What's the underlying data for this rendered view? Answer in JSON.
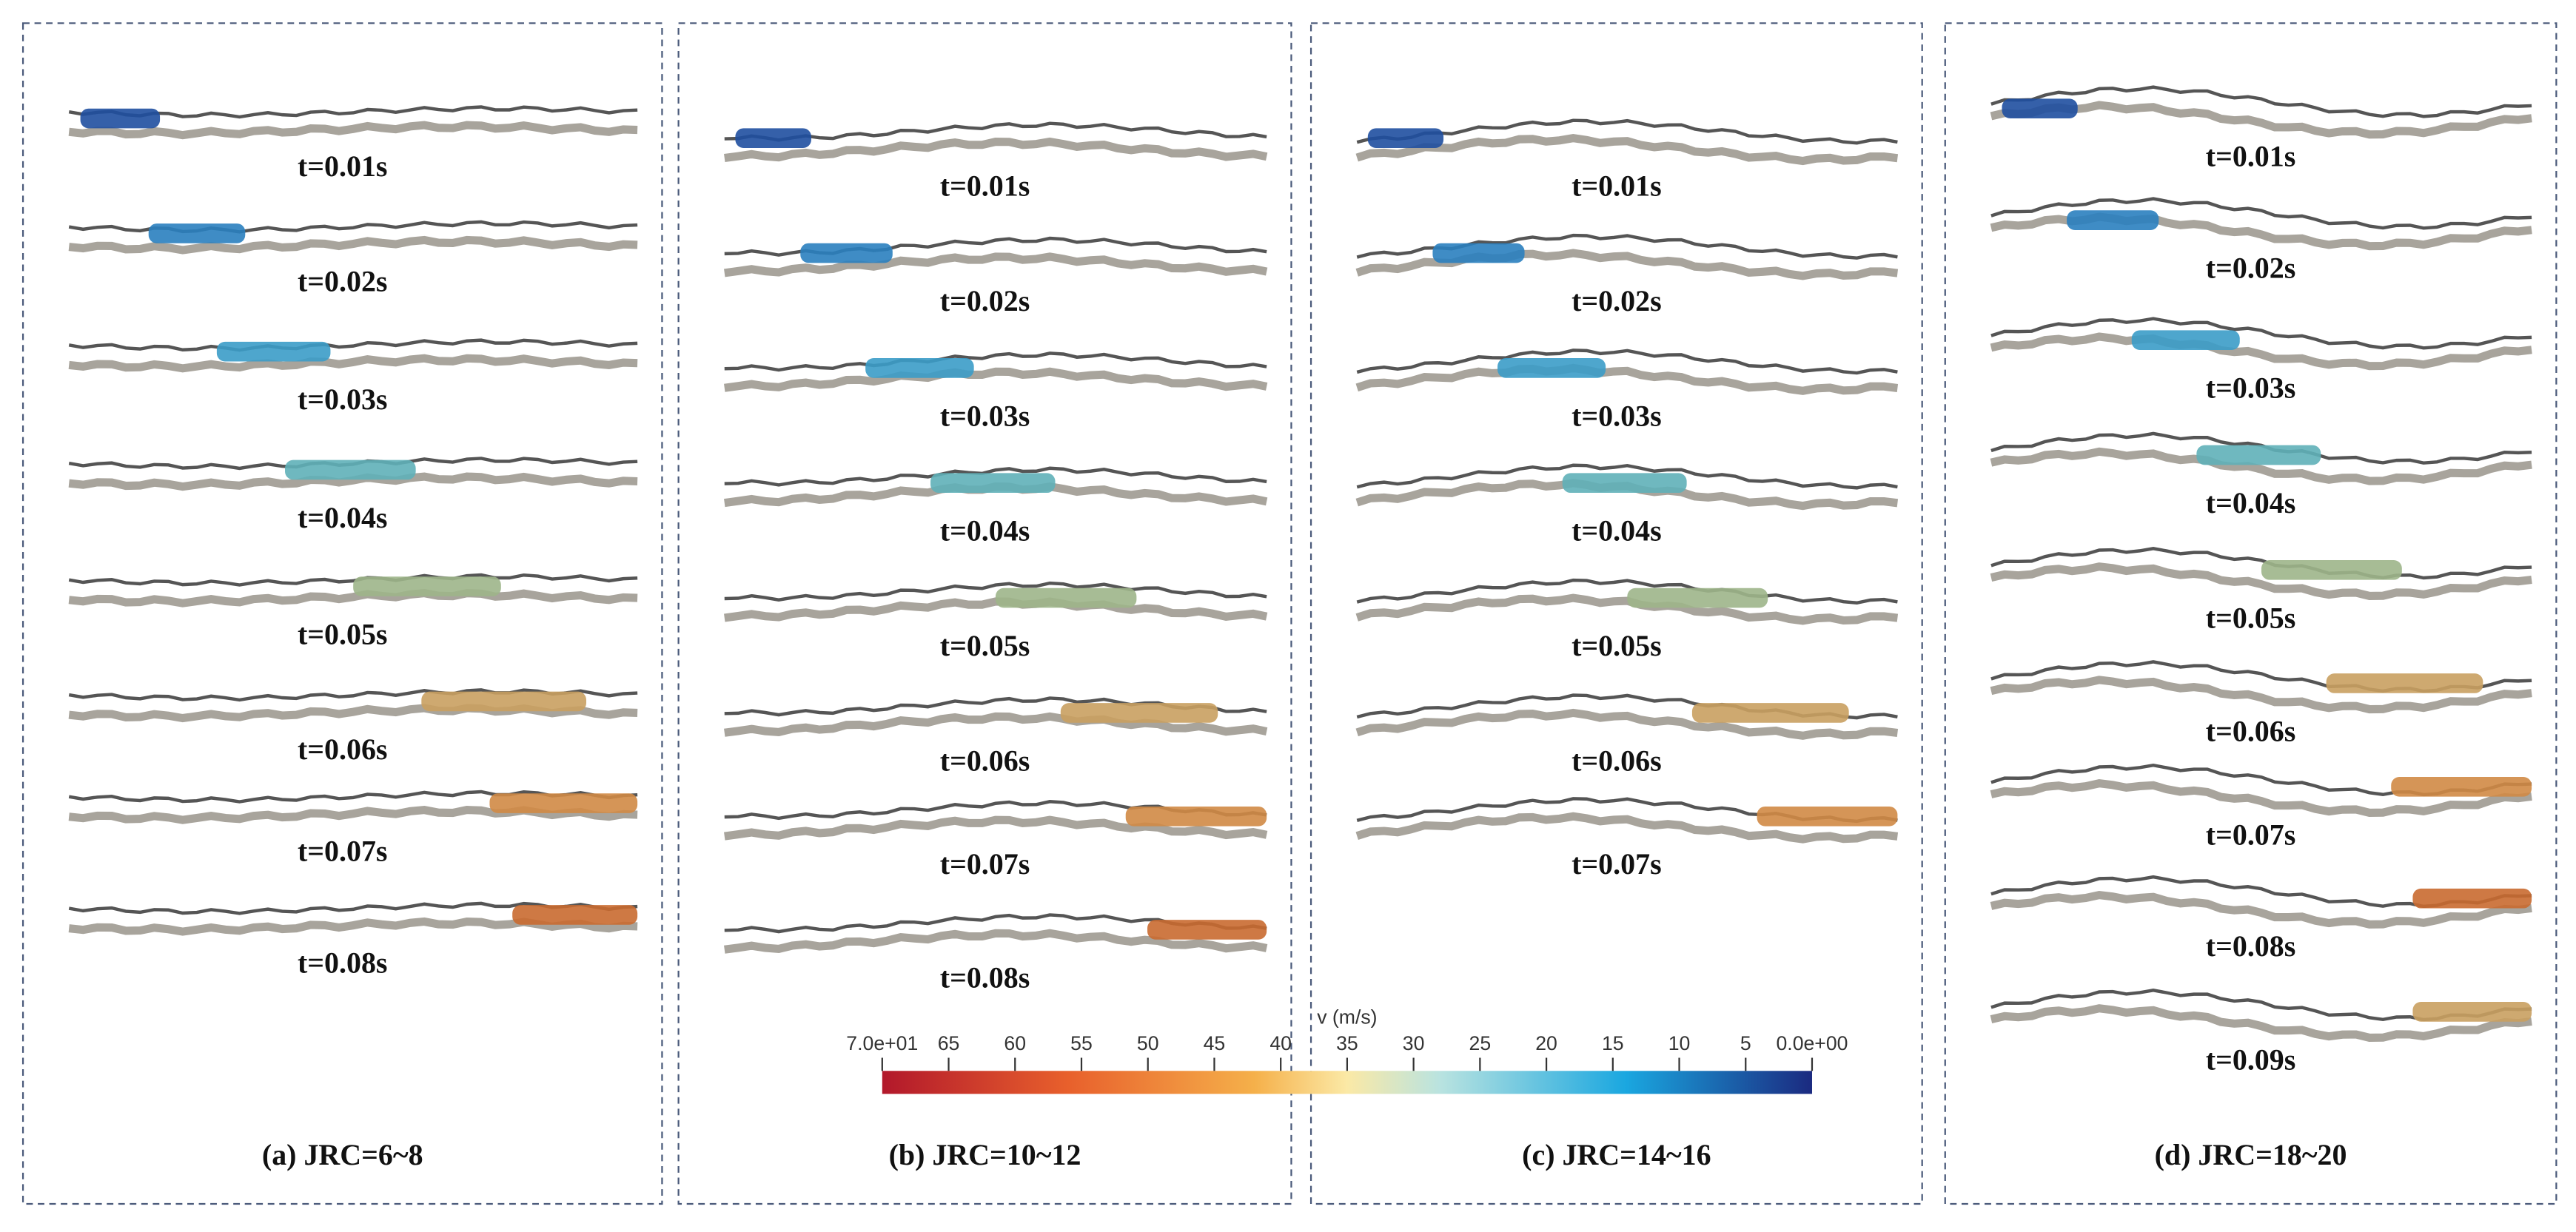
{
  "panels": [
    {
      "caption": "(a) JRC=6~8",
      "times": [
        "t=0.01s",
        "t=0.02s",
        "t=0.03s",
        "t=0.04s",
        "t=0.05s",
        "t=0.06s",
        "t=0.07s",
        "t=0.08s"
      ]
    },
    {
      "caption": "(b) JRC=10~12",
      "times": [
        "t=0.01s",
        "t=0.02s",
        "t=0.03s",
        "t=0.04s",
        "t=0.05s",
        "t=0.06s",
        "t=0.07s",
        "t=0.08s"
      ]
    },
    {
      "caption": "(c) JRC=14~16",
      "times": [
        "t=0.01s",
        "t=0.02s",
        "t=0.03s",
        "t=0.04s",
        "t=0.05s",
        "t=0.06s",
        "t=0.07s"
      ]
    },
    {
      "caption": "(d) JRC=18~20",
      "times": [
        "t=0.01s",
        "t=0.02s",
        "t=0.03s",
        "t=0.04s",
        "t=0.05s",
        "t=0.06s",
        "t=0.07s",
        "t=0.08s",
        "t=0.09s"
      ]
    }
  ],
  "colorbar": {
    "title": "v (m/s)",
    "labels": [
      "7.0e+01",
      "65",
      "60",
      "55",
      "50",
      "45",
      "40",
      "35",
      "30",
      "25",
      "20",
      "15",
      "10",
      "5",
      "0.0e+00"
    ]
  }
}
